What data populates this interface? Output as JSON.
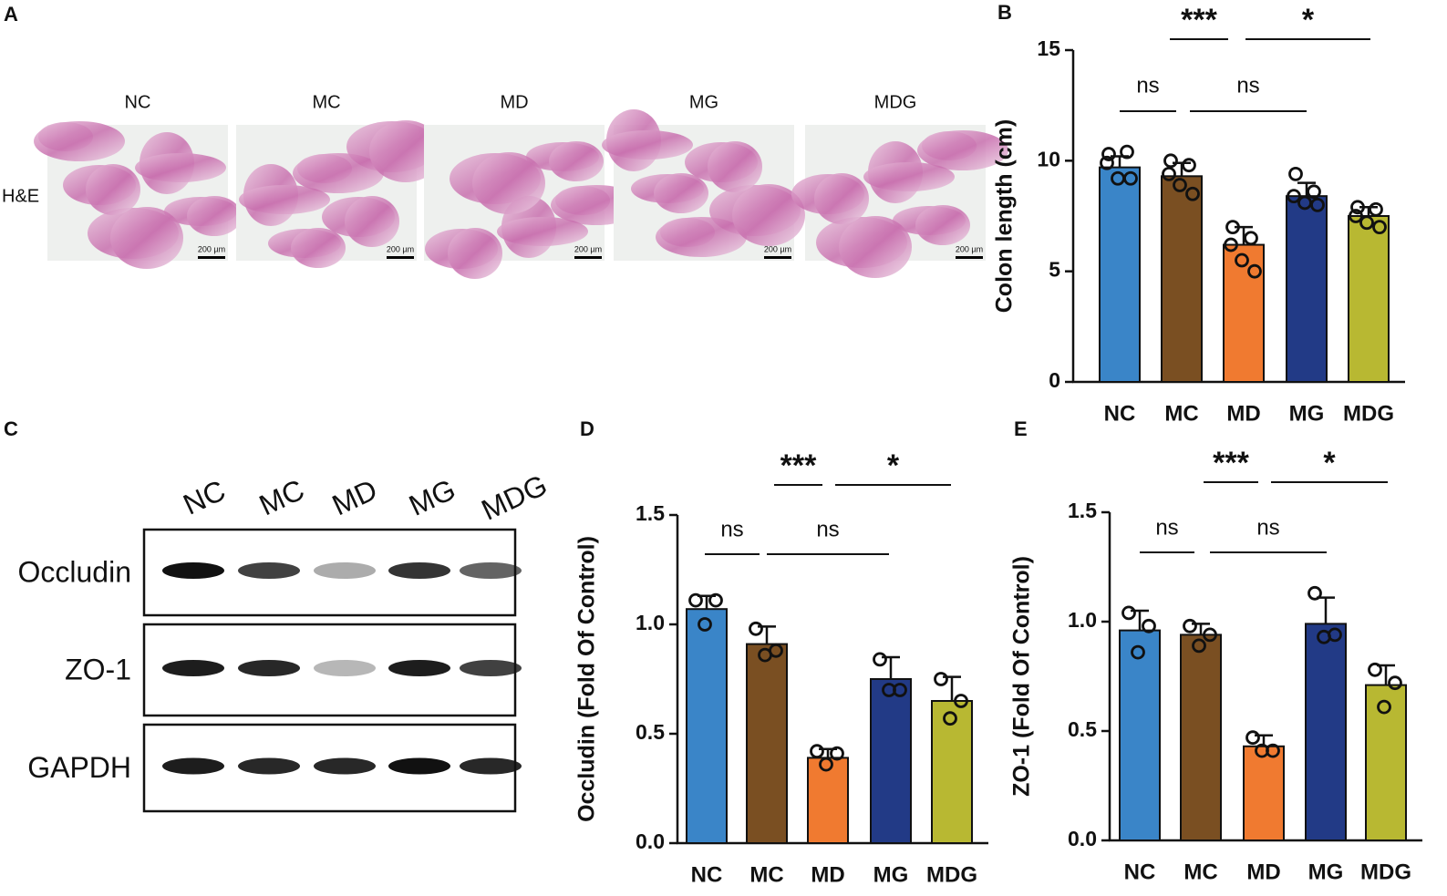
{
  "panel_labels": [
    "A",
    "B",
    "C",
    "D",
    "E"
  ],
  "histology": {
    "columns": [
      "NC",
      "MC",
      "MD",
      "MG",
      "MDG"
    ],
    "row_label": "H&E",
    "scale_bar": "200 µm"
  },
  "blot": {
    "lanes": [
      "NC",
      "MC",
      "MD",
      "MG",
      "MDG"
    ],
    "rows": [
      "Occludin",
      "ZO-1",
      "GAPDH"
    ]
  },
  "chart_data": [
    {
      "type": "bar",
      "ylabel": "Colon length (cm)",
      "categories": [
        "NC",
        "MC",
        "MD",
        "MG",
        "MDG"
      ],
      "colors": [
        "#3a85c8",
        "#7a4f22",
        "#f07a30",
        "#223a86",
        "#b8b832"
      ],
      "values": [
        9.7,
        9.3,
        6.2,
        8.4,
        7.5
      ],
      "errors": [
        0.5,
        0.6,
        0.8,
        0.6,
        0.4
      ],
      "points": [
        [
          10.3,
          10.4,
          9.9,
          9.2,
          9.2
        ],
        [
          10.0,
          9.8,
          9.4,
          8.9,
          8.5
        ],
        [
          7.0,
          6.5,
          6.2,
          5.5,
          5.0
        ],
        [
          9.4,
          8.6,
          8.4,
          8.1,
          8.0
        ],
        [
          7.9,
          7.8,
          7.5,
          7.2,
          7.0
        ]
      ],
      "ylim": [
        0,
        15
      ],
      "yticks": [
        0,
        5,
        10,
        15
      ],
      "significance": [
        "ns",
        "ns",
        "***",
        "*"
      ]
    },
    {
      "type": "bar",
      "ylabel": "Occludin (Fold Of Control)",
      "categories": [
        "NC",
        "MC",
        "MD",
        "MG",
        "MDG"
      ],
      "colors": [
        "#3a85c8",
        "#7a4f22",
        "#f07a30",
        "#223a86",
        "#b8b832"
      ],
      "values": [
        1.07,
        0.91,
        0.39,
        0.75,
        0.65
      ],
      "errors": [
        0.06,
        0.08,
        0.04,
        0.1,
        0.11
      ],
      "points": [
        [
          1.11,
          1.11,
          1.0
        ],
        [
          0.98,
          0.88,
          0.86
        ],
        [
          0.42,
          0.41,
          0.36
        ],
        [
          0.84,
          0.7,
          0.7
        ],
        [
          0.75,
          0.65,
          0.57
        ]
      ],
      "ylim": [
        0,
        1.5
      ],
      "yticks": [
        {
          "value": 0,
          "label": "0.0"
        },
        0.5,
        {
          "value": 1,
          "label": "1.0"
        },
        1.5
      ],
      "significance": [
        "ns",
        "ns",
        "***",
        "*"
      ]
    },
    {
      "type": "bar",
      "ylabel": "ZO-1 (Fold Of Control)",
      "categories": [
        "NC",
        "MC",
        "MD",
        "MG",
        "MDG"
      ],
      "colors": [
        "#3a85c8",
        "#7a4f22",
        "#f07a30",
        "#223a86",
        "#b8b832"
      ],
      "values": [
        0.96,
        0.94,
        0.43,
        0.99,
        0.71
      ],
      "errors": [
        0.09,
        0.05,
        0.05,
        0.12,
        0.09
      ],
      "points": [
        [
          1.04,
          0.98,
          0.86
        ],
        [
          0.98,
          0.94,
          0.89
        ],
        [
          0.47,
          0.41,
          0.41
        ],
        [
          1.13,
          0.94,
          0.93
        ],
        [
          0.78,
          0.72,
          0.61
        ]
      ],
      "ylim": [
        0,
        1.5
      ],
      "yticks": [
        {
          "value": 0,
          "label": "0.0"
        },
        0.5,
        {
          "value": 1,
          "label": "1.0"
        },
        1.5
      ],
      "significance": [
        "ns",
        "ns",
        "***",
        "*"
      ]
    }
  ]
}
